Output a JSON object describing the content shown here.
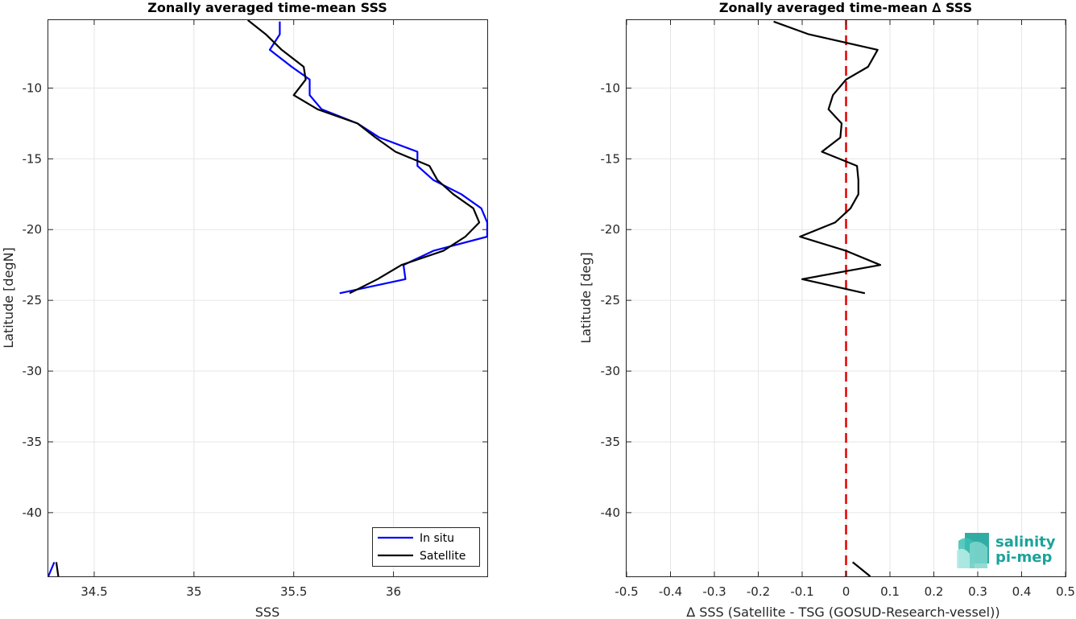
{
  "chart_data": [
    {
      "type": "line",
      "title": "Zonally averaged time-mean SSS",
      "xlabel": "SSS",
      "ylabel": "Latitude [degN]",
      "xlim": [
        34.27,
        36.47
      ],
      "ylim": [
        -44.5,
        -5.2
      ],
      "xticks": [
        34.5,
        35,
        35.5,
        36
      ],
      "xticklabels": [
        "34.5",
        "35",
        "35.5",
        "36"
      ],
      "yticks": [
        -10,
        -15,
        -20,
        -25,
        -30,
        -35,
        -40
      ],
      "yticklabels": [
        "-10",
        "-15",
        "-20",
        "-25",
        "-30",
        "-35",
        "-40"
      ],
      "grid": true,
      "legend_location": "bottom-right",
      "series": [
        {
          "name": "In situ",
          "color": "#0000ff",
          "segments": [
            [
              [
                35.43,
                -5.3
              ],
              [
                35.43,
                -6.2
              ],
              [
                35.38,
                -7.3
              ],
              [
                35.49,
                -8.5
              ],
              [
                35.58,
                -9.4
              ],
              [
                35.58,
                -10.5
              ],
              [
                35.64,
                -11.5
              ],
              [
                35.82,
                -12.5
              ],
              [
                35.93,
                -13.5
              ],
              [
                36.12,
                -14.5
              ],
              [
                36.12,
                -15.5
              ],
              [
                36.2,
                -16.5
              ],
              [
                36.34,
                -17.5
              ],
              [
                36.44,
                -18.5
              ],
              [
                36.47,
                -19.5
              ],
              [
                36.47,
                -20.5
              ],
              [
                36.2,
                -21.5
              ],
              [
                36.05,
                -22.5
              ],
              [
                36.06,
                -23.5
              ],
              [
                35.73,
                -24.5
              ]
            ]
          ]
        },
        {
          "name": "Satellite",
          "color": "#000000",
          "segments": [
            [
              [
                35.27,
                -5.2
              ],
              [
                35.36,
                -6.2
              ],
              [
                35.44,
                -7.3
              ],
              [
                35.55,
                -8.5
              ],
              [
                35.56,
                -9.4
              ],
              [
                35.5,
                -10.5
              ],
              [
                35.62,
                -11.5
              ],
              [
                35.82,
                -12.5
              ],
              [
                35.91,
                -13.5
              ],
              [
                36.01,
                -14.5
              ],
              [
                36.18,
                -15.5
              ],
              [
                36.22,
                -16.5
              ],
              [
                36.3,
                -17.5
              ],
              [
                36.4,
                -18.5
              ],
              [
                36.43,
                -19.5
              ],
              [
                36.36,
                -20.5
              ],
              [
                36.25,
                -21.5
              ],
              [
                36.04,
                -22.5
              ],
              [
                35.92,
                -23.5
              ],
              [
                35.78,
                -24.5
              ]
            ],
            [
              [
                34.31,
                -43.5
              ],
              [
                34.32,
                -44.5
              ]
            ]
          ]
        },
        {
          "name": "",
          "color": "#0000ff",
          "segments": [
            [
              [
                34.27,
                -44.5
              ],
              [
                34.3,
                -43.5
              ]
            ]
          ]
        }
      ]
    },
    {
      "type": "line",
      "title": "Zonally averaged time-mean ∆ SSS",
      "xlabel": "∆ SSS (Satellite - TSG (GOSUD-Research-vessel))",
      "ylabel": "Latitude [deg]",
      "xlim": [
        -0.5,
        0.5
      ],
      "ylim": [
        -44.5,
        -5.2
      ],
      "xticks": [
        -0.5,
        -0.4,
        -0.3,
        -0.2,
        -0.1,
        0,
        0.1,
        0.2,
        0.3,
        0.4,
        0.5
      ],
      "xticklabels": [
        "-0.5",
        "-0.4",
        "-0.3",
        "-0.2",
        "-0.1",
        "0",
        "0.1",
        "0.2",
        "0.3",
        "0.4",
        "0.5"
      ],
      "yticks": [
        -10,
        -15,
        -20,
        -25,
        -30,
        -35,
        -40
      ],
      "yticklabels": [
        "-10",
        "-15",
        "-20",
        "-25",
        "-30",
        "-35",
        "-40"
      ],
      "grid": true,
      "reference_line": {
        "x": 0,
        "color": "#e00000",
        "style": "dashed"
      },
      "series": [
        {
          "name": "",
          "color": "#000000",
          "segments": [
            [
              [
                -0.165,
                -5.3
              ],
              [
                -0.085,
                -6.2
              ],
              [
                0.072,
                -7.3
              ],
              [
                0.05,
                -8.5
              ],
              [
                0.0,
                -9.4
              ],
              [
                -0.03,
                -10.5
              ],
              [
                -0.04,
                -11.5
              ],
              [
                -0.01,
                -12.5
              ],
              [
                -0.013,
                -13.5
              ],
              [
                -0.055,
                -14.5
              ],
              [
                0.025,
                -15.5
              ],
              [
                0.028,
                -16.5
              ],
              [
                0.028,
                -17.5
              ],
              [
                0.01,
                -18.5
              ],
              [
                -0.025,
                -19.5
              ],
              [
                -0.105,
                -20.5
              ],
              [
                0.0,
                -21.5
              ],
              [
                0.078,
                -22.5
              ],
              [
                -0.1,
                -23.5
              ],
              [
                0.043,
                -24.5
              ]
            ],
            [
              [
                0.015,
                -43.5
              ],
              [
                0.055,
                -44.5
              ]
            ]
          ]
        }
      ]
    }
  ],
  "legend": {
    "items": [
      {
        "label": "In situ",
        "color": "#0000ff"
      },
      {
        "label": "Satellite",
        "color": "#000000"
      }
    ]
  },
  "logo": {
    "line1": "salinity",
    "line2": "pi-mep",
    "color": "#1aa39a"
  }
}
